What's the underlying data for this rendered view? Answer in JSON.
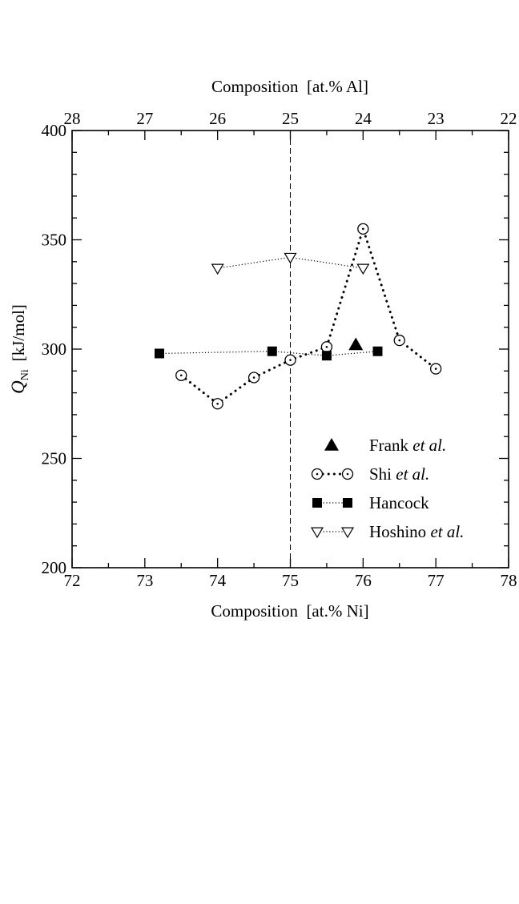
{
  "chart_data": {
    "type": "scatter",
    "xlabel": "Composition  [at.% Ni]",
    "x2label": "Composition  [at.% Al]",
    "ylabel_main": "Q",
    "ylabel_sub": "Ni",
    "ylabel_unit": "[kJ/mol]",
    "xlim": [
      72,
      78
    ],
    "ylim": [
      200,
      400
    ],
    "x_ticks": [
      72,
      73,
      74,
      75,
      76,
      77,
      78
    ],
    "x2_ticks": [
      28,
      27,
      26,
      25,
      24,
      23,
      22
    ],
    "y_ticks": [
      200,
      250,
      300,
      350,
      400
    ],
    "reference_line_x": 75,
    "legend_position": "lower-right",
    "grid": false,
    "series": [
      {
        "name_plain": "Frank",
        "name_italic": " et al.",
        "marker": "triangle-filled",
        "line": "none",
        "points": [
          [
            75.9,
            302
          ]
        ]
      },
      {
        "name_plain": "Shi",
        "name_italic": " et al.",
        "marker": "circle-dot-open",
        "line": "dotted-heavy",
        "points": [
          [
            73.5,
            288
          ],
          [
            74.0,
            275
          ],
          [
            74.5,
            287
          ],
          [
            75.0,
            295
          ],
          [
            75.5,
            301
          ],
          [
            76.0,
            355
          ],
          [
            76.5,
            304
          ],
          [
            77.0,
            291
          ]
        ]
      },
      {
        "name_plain": "Hancock",
        "name_italic": "",
        "marker": "square-filled",
        "line": "dotted-thin",
        "points": [
          [
            73.2,
            298
          ],
          [
            74.75,
            299
          ],
          [
            75.5,
            297
          ],
          [
            76.2,
            299
          ]
        ]
      },
      {
        "name_plain": "Hoshino",
        "name_italic": " et al.",
        "marker": "triangle-down-open",
        "line": "dotted-thin",
        "points": [
          [
            74.0,
            337
          ],
          [
            75.0,
            342
          ],
          [
            76.0,
            337
          ]
        ]
      }
    ]
  }
}
